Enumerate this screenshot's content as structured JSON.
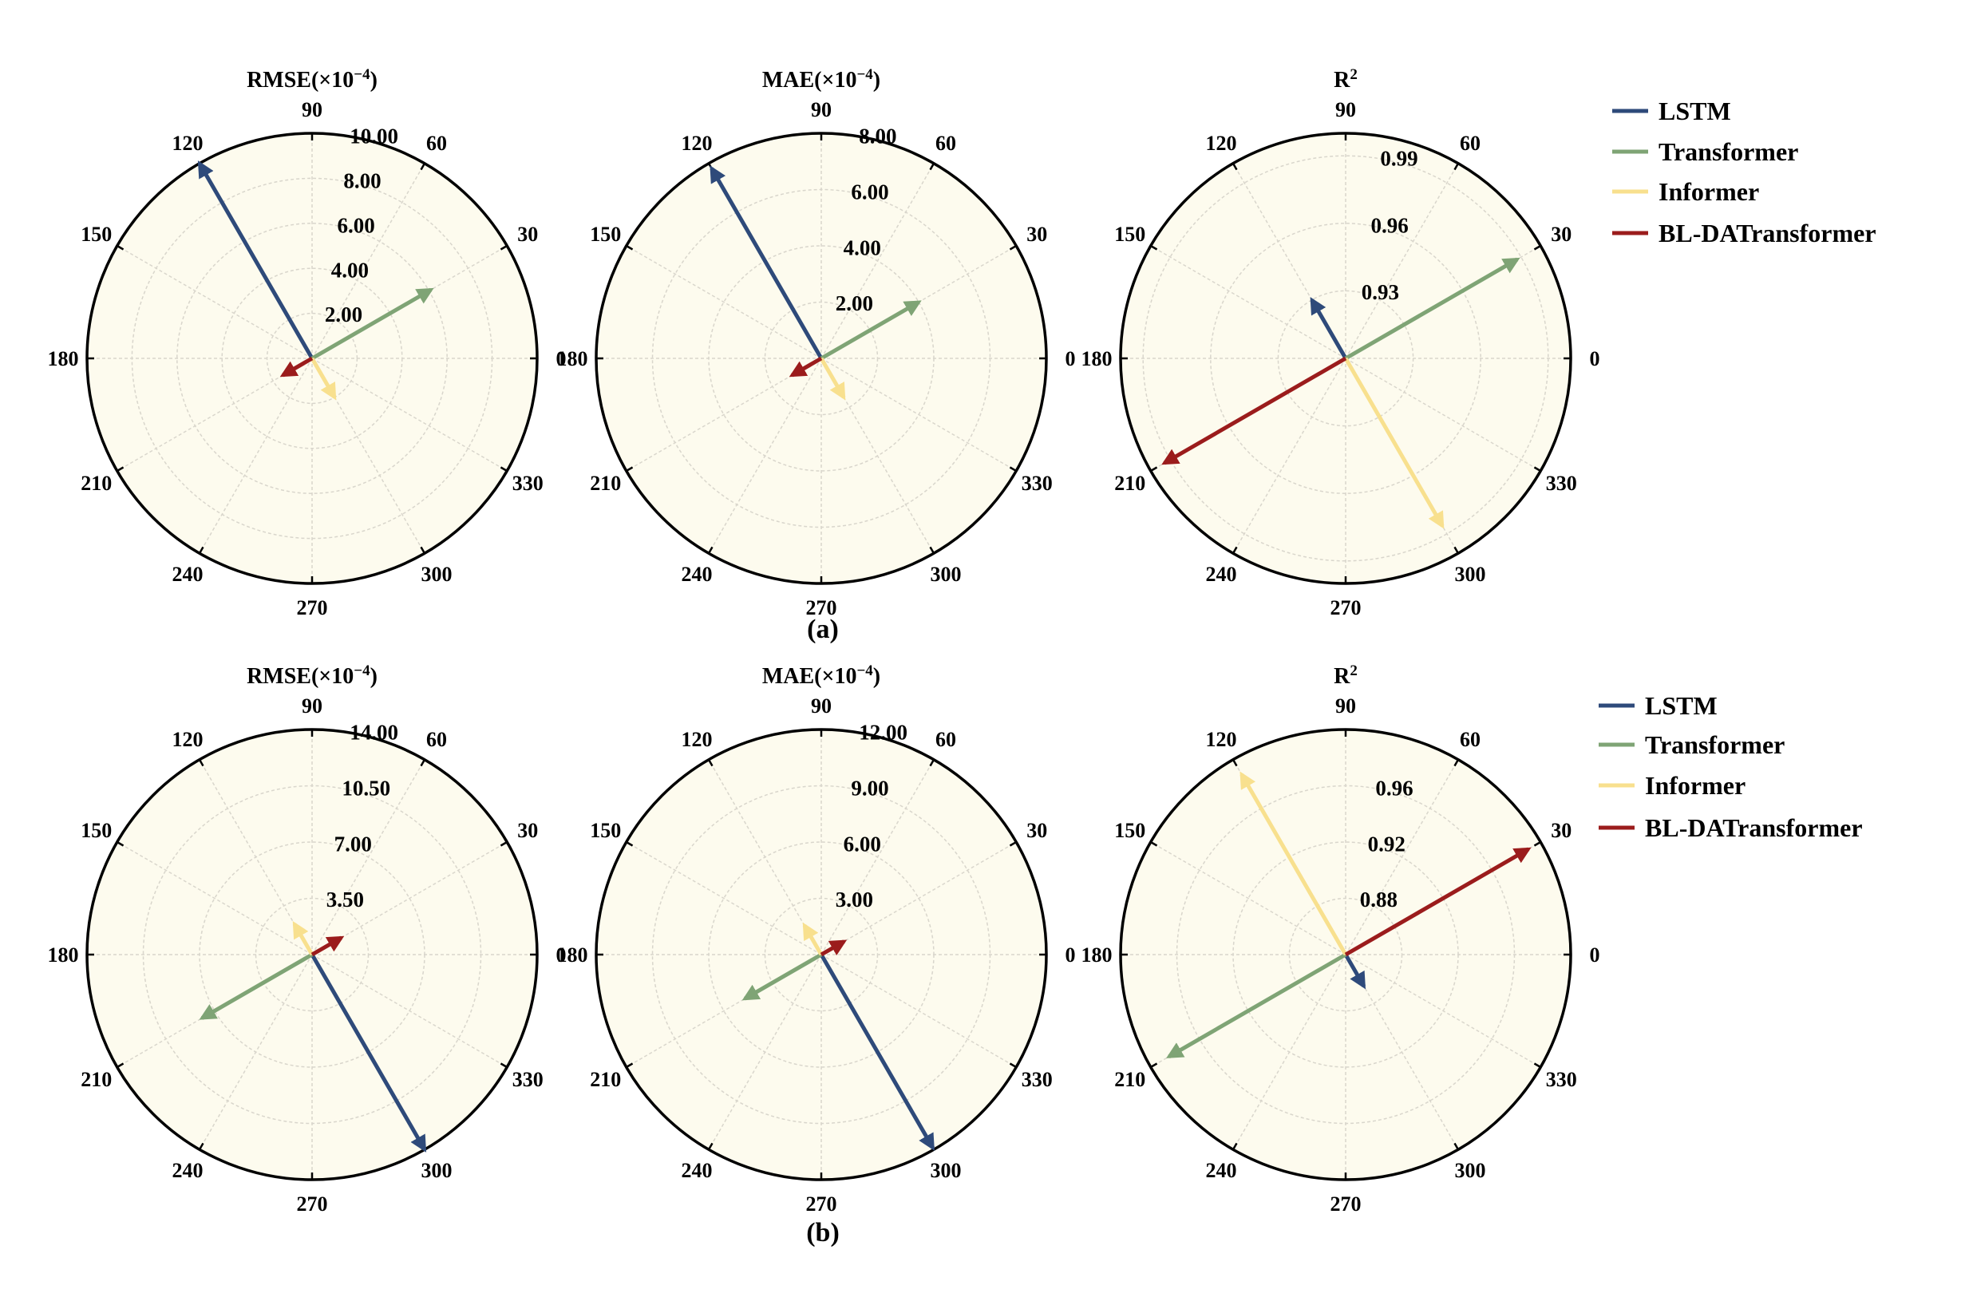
{
  "figure": {
    "panel_labels": [
      "(a)",
      "(b)"
    ],
    "angle_ticks": [
      "0",
      "30",
      "60",
      "90",
      "120",
      "150",
      "180",
      "210",
      "240",
      "270",
      "300",
      "330"
    ],
    "legends": [
      {
        "items": [
          "LSTM",
          "Transformer",
          "Informer",
          "BL-DATransformer"
        ]
      },
      {
        "items": [
          "LSTM",
          "Transformer",
          "Informer",
          "BL-DATransformer"
        ]
      }
    ]
  },
  "colors": {
    "LSTM": "#2e4a7a",
    "Transformer": "#7fa475",
    "Informer": "#f8e08e",
    "BL-DATransformer": "#9b1c1c",
    "plot_bg": "#fdfbee",
    "grid": "#d9d6cc"
  },
  "chart_data": [
    {
      "type": "polar",
      "panel": "(a)",
      "title_main": "RMSE(×10",
      "title_sup": "−4",
      "title_tail": ")",
      "rlim": [
        0,
        10
      ],
      "rticks": [
        2,
        4,
        6,
        8,
        10
      ],
      "rtick_labels": [
        "2.00",
        "4.00",
        "6.00",
        "8.00",
        "10.00"
      ],
      "series": [
        {
          "name": "LSTM",
          "angle": 120,
          "r": 10.0
        },
        {
          "name": "Transformer",
          "angle": 30,
          "r": 6.1
        },
        {
          "name": "Informer",
          "angle": 300,
          "r": 2.0
        },
        {
          "name": "BL-DATransformer",
          "angle": 210,
          "r": 1.5
        }
      ]
    },
    {
      "type": "polar",
      "panel": "(a)",
      "title_main": "MAE(×10",
      "title_sup": "−4",
      "title_tail": ")",
      "rlim": [
        0,
        8
      ],
      "rticks": [
        2,
        4,
        6,
        8
      ],
      "rtick_labels": [
        "2.00",
        "4.00",
        "6.00",
        "8.00"
      ],
      "series": [
        {
          "name": "LSTM",
          "angle": 120,
          "r": 7.8
        },
        {
          "name": "Transformer",
          "angle": 30,
          "r": 4.0
        },
        {
          "name": "Informer",
          "angle": 300,
          "r": 1.6
        },
        {
          "name": "BL-DATransformer",
          "angle": 210,
          "r": 1.2
        }
      ]
    },
    {
      "type": "polar",
      "panel": "(a)",
      "title_main": "R",
      "title_sup": "2",
      "title_tail": "",
      "rlim": [
        0.9,
        1.0
      ],
      "rticks": [
        0.93,
        0.96,
        0.99
      ],
      "rtick_labels": [
        "0.93",
        "0.96",
        "0.99"
      ],
      "series": [
        {
          "name": "LSTM",
          "angle": 120,
          "r": 0.93
        },
        {
          "name": "Transformer",
          "angle": 30,
          "r": 0.988
        },
        {
          "name": "Informer",
          "angle": 300,
          "r": 0.986
        },
        {
          "name": "BL-DATransformer",
          "angle": 210,
          "r": 0.993
        }
      ]
    },
    {
      "type": "polar",
      "panel": "(b)",
      "title_main": "RMSE(×10",
      "title_sup": "−4",
      "title_tail": ")",
      "rlim": [
        0,
        14
      ],
      "rticks": [
        3.5,
        7,
        10.5,
        14
      ],
      "rtick_labels": [
        "3.50",
        "7.00",
        "10.50",
        "14.00"
      ],
      "series": [
        {
          "name": "LSTM",
          "angle": 300,
          "r": 14.0
        },
        {
          "name": "Transformer",
          "angle": 210,
          "r": 7.9
        },
        {
          "name": "Informer",
          "angle": 120,
          "r": 2.2
        },
        {
          "name": "BL-DATransformer",
          "angle": 30,
          "r": 2.1
        }
      ]
    },
    {
      "type": "polar",
      "panel": "(b)",
      "title_main": "MAE(×10",
      "title_sup": "−4",
      "title_tail": ")",
      "rlim": [
        0,
        12
      ],
      "rticks": [
        3,
        6,
        9,
        12
      ],
      "rtick_labels": [
        "3.00",
        "6.00",
        "9.00",
        "12.00"
      ],
      "series": [
        {
          "name": "LSTM",
          "angle": 300,
          "r": 11.9
        },
        {
          "name": "Transformer",
          "angle": 210,
          "r": 4.7
        },
        {
          "name": "Informer",
          "angle": 120,
          "r": 1.8
        },
        {
          "name": "BL-DATransformer",
          "angle": 30,
          "r": 1.4
        }
      ]
    },
    {
      "type": "polar",
      "panel": "(b)",
      "title_main": "R",
      "title_sup": "2",
      "title_tail": "",
      "rlim": [
        0.84,
        1.0
      ],
      "rticks": [
        0.88,
        0.92,
        0.96
      ],
      "rtick_labels": [
        "0.88",
        "0.92",
        "0.96"
      ],
      "series": [
        {
          "name": "LSTM",
          "angle": 300,
          "r": 0.866
        },
        {
          "name": "Transformer",
          "angle": 210,
          "r": 0.985
        },
        {
          "name": "Informer",
          "angle": 120,
          "r": 0.988
        },
        {
          "name": "BL-DATransformer",
          "angle": 30,
          "r": 0.99
        }
      ]
    }
  ]
}
